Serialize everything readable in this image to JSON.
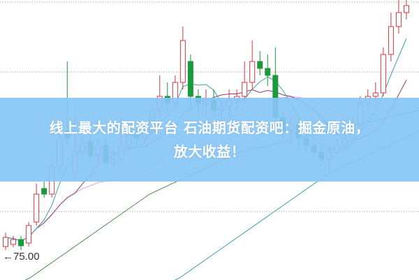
{
  "banner": {
    "line1": "线上最大的配资平台 石油期货配资吧：掘金原油，",
    "line2": "放大收益！"
  },
  "chart_data": {
    "type": "candlestick",
    "title": "",
    "reference_label": "←75.00",
    "reference_price": 75.0,
    "grid": "horizontal dotted",
    "colors": {
      "up": "#d9363e",
      "down": "#1a9a3a",
      "ma5": "#3aa0a8",
      "ma10": "#8a3a7a",
      "ma20": "#e2a0e0",
      "ma_long1": "#4a8a4a",
      "ma_long2": "#3a9ab0"
    },
    "candles": [
      [
        76.5,
        77.8,
        78.5,
        76
      ],
      [
        76.8,
        77.5,
        78,
        76.4
      ],
      [
        77.5,
        76.6,
        78,
        76
      ],
      [
        77,
        79.5,
        80,
        76.5
      ],
      [
        80,
        84,
        85.5,
        79.5
      ],
      [
        84.8,
        84,
        86,
        83.5
      ],
      [
        84,
        88,
        89,
        83.5
      ],
      [
        88,
        92,
        93,
        87
      ],
      [
        93,
        92,
        103,
        91
      ],
      [
        87,
        90,
        95,
        86
      ],
      [
        90,
        91.5,
        93,
        89
      ],
      [
        91.5,
        89.5,
        92.5,
        88.5
      ],
      [
        89.5,
        91,
        92,
        88
      ],
      [
        91,
        88.5,
        92,
        88
      ],
      [
        88.5,
        89,
        90.5,
        87.5
      ],
      [
        89,
        91,
        95,
        88.5
      ],
      [
        91,
        92.5,
        94,
        90
      ],
      [
        92.5,
        92,
        93.5,
        91
      ],
      [
        92,
        93,
        94,
        91
      ],
      [
        93,
        96,
        97,
        92.5
      ],
      [
        96,
        98,
        101,
        95
      ],
      [
        98,
        97,
        100,
        96
      ],
      [
        97,
        100,
        101,
        96
      ],
      [
        100,
        106,
        108,
        99
      ],
      [
        103,
        98,
        104,
        96
      ],
      [
        98,
        97,
        99,
        95.5
      ],
      [
        97,
        97.5,
        99,
        95
      ],
      [
        97.5,
        96,
        99,
        95
      ],
      [
        96,
        96.5,
        97.5,
        94
      ],
      [
        96.5,
        97.5,
        99,
        95
      ],
      [
        97.5,
        98,
        99,
        96
      ],
      [
        98,
        100,
        103,
        97
      ],
      [
        100,
        103,
        106,
        99
      ],
      [
        103,
        102,
        104.5,
        101
      ],
      [
        102,
        101,
        104,
        99.5
      ],
      [
        101,
        95,
        105,
        94
      ],
      [
        95,
        93,
        96,
        92
      ],
      [
        93,
        94,
        95,
        91
      ],
      [
        94,
        92,
        95,
        90.5
      ],
      [
        92,
        91,
        93,
        90
      ],
      [
        91,
        90,
        92,
        89
      ],
      [
        90,
        89,
        91,
        88
      ],
      [
        89,
        90,
        91,
        87
      ],
      [
        90,
        91,
        92,
        89.5
      ],
      [
        91,
        92,
        93,
        90.5
      ],
      [
        92,
        94,
        95,
        91.5
      ],
      [
        94,
        97,
        98,
        93.5
      ],
      [
        97,
        98,
        99,
        96
      ],
      [
        98,
        98.5,
        100,
        97
      ],
      [
        98.5,
        104,
        105,
        98
      ],
      [
        104,
        108,
        110,
        103
      ],
      [
        108,
        110,
        112,
        107
      ],
      [
        110,
        111,
        113,
        109
      ]
    ],
    "candle_fields": [
      "open",
      "close",
      "high",
      "low"
    ],
    "long_ma_1": [
      70,
      72,
      75,
      78,
      81,
      84,
      86,
      88,
      90,
      91,
      92,
      93,
      94,
      95,
      96
    ],
    "long_ma_2": [
      62,
      63,
      64,
      66,
      68,
      70,
      72,
      75,
      78,
      81,
      84,
      87,
      89,
      91,
      93
    ]
  }
}
